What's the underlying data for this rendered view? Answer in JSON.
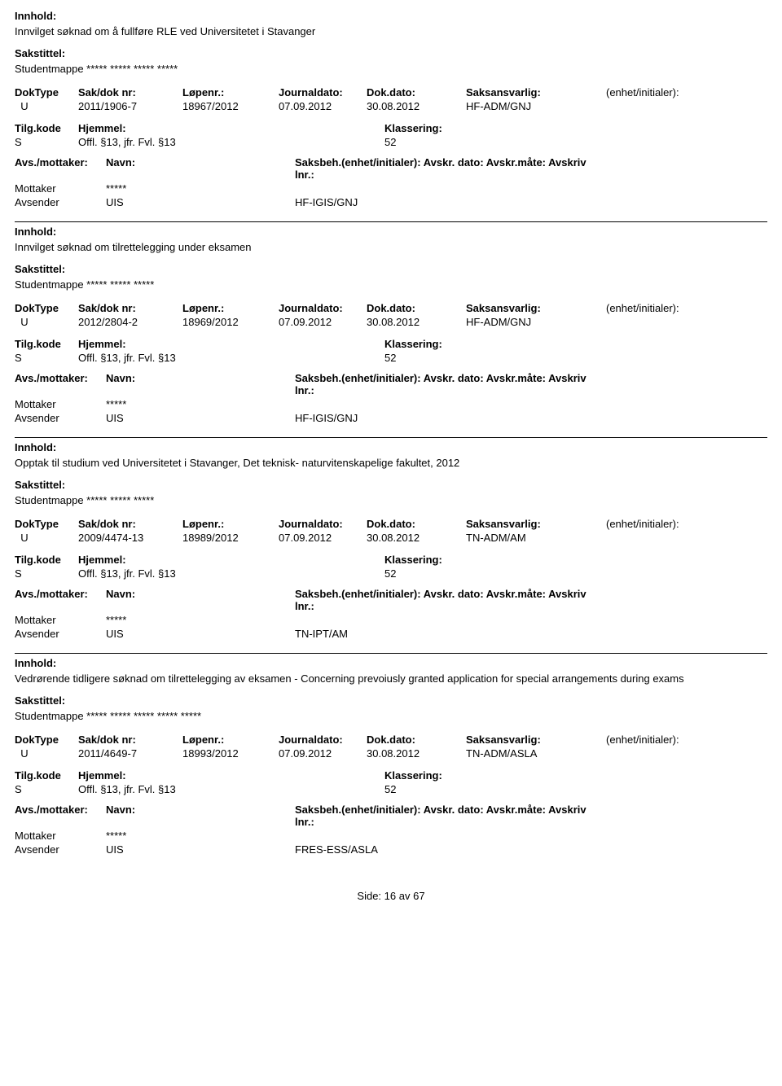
{
  "labels": {
    "innhold": "Innhold:",
    "sakstittel": "Sakstittel:",
    "doktype": "DokType",
    "sakdok": "Sak/dok nr:",
    "lopenr": "Løpenr.:",
    "journaldato": "Journaldato:",
    "dokdato": "Dok.dato:",
    "saksansvarlig": "Saksansvarlig:",
    "enhet": "(enhet/initialer):",
    "tilgkode": "Tilg.kode",
    "hjemmel": "Hjemmel:",
    "klassering": "Klassering:",
    "avsmottaker": "Avs./mottaker:",
    "navn": "Navn:",
    "saksbeh": "Saksbeh.(enhet/initialer): Avskr. dato: Avskr.måte: Avskriv lnr.:"
  },
  "footer": {
    "side": "Side:",
    "page": "16",
    "av": "av",
    "total": "67"
  },
  "records": [
    {
      "innhold": "Innvilget søknad om å fullføre RLE ved Universitetet i Stavanger",
      "sakstittel": "Studentmappe ***** ***** ***** *****",
      "doktype": "U",
      "sakdok": "2011/1906-7",
      "lopenr": "18967/2012",
      "jdato": "07.09.2012",
      "ddato": "30.08.2012",
      "saksansv": "HF-ADM/GNJ",
      "enhet": "",
      "tilg": "S",
      "hjemmel": "Offl. §13, jfr. Fvl. §13",
      "klass": "52",
      "parties": [
        {
          "role": "Mottaker",
          "name": "*****",
          "code": ""
        },
        {
          "role": "Avsender",
          "name": "UIS",
          "code": "HF-IGIS/GNJ"
        }
      ]
    },
    {
      "innhold": "Innvilget søknad om tilrettelegging under eksamen",
      "sakstittel": "Studentmappe ***** ***** *****",
      "doktype": "U",
      "sakdok": "2012/2804-2",
      "lopenr": "18969/2012",
      "jdato": "07.09.2012",
      "ddato": "30.08.2012",
      "saksansv": "HF-ADM/GNJ",
      "enhet": "",
      "tilg": "S",
      "hjemmel": "Offl. §13, jfr. Fvl. §13",
      "klass": "52",
      "parties": [
        {
          "role": "Mottaker",
          "name": "*****",
          "code": ""
        },
        {
          "role": "Avsender",
          "name": "UIS",
          "code": "HF-IGIS/GNJ"
        }
      ]
    },
    {
      "innhold": "Opptak til studium ved Universitetet i Stavanger, Det teknisk- naturvitenskapelige fakultet, 2012",
      "sakstittel": "Studentmappe ***** ***** *****",
      "doktype": "U",
      "sakdok": "2009/4474-13",
      "lopenr": "18989/2012",
      "jdato": "07.09.2012",
      "ddato": "30.08.2012",
      "saksansv": "TN-ADM/AM",
      "enhet": "",
      "tilg": "S",
      "hjemmel": "Offl. §13, jfr. Fvl. §13",
      "klass": "52",
      "parties": [
        {
          "role": "Mottaker",
          "name": "*****",
          "code": ""
        },
        {
          "role": "Avsender",
          "name": "UIS",
          "code": "TN-IPT/AM"
        }
      ]
    },
    {
      "innhold": "Vedrørende tidligere søknad om tilrettelegging av eksamen - Concerning prevoiusly granted application for special arrangements during exams",
      "sakstittel": "Studentmappe ***** ***** ***** ***** *****",
      "doktype": "U",
      "sakdok": "2011/4649-7",
      "lopenr": "18993/2012",
      "jdato": "07.09.2012",
      "ddato": "30.08.2012",
      "saksansv": "TN-ADM/ASLA",
      "enhet": "",
      "tilg": "S",
      "hjemmel": "Offl. §13, jfr. Fvl. §13",
      "klass": "52",
      "parties": [
        {
          "role": "Mottaker",
          "name": "*****",
          "code": ""
        },
        {
          "role": "Avsender",
          "name": "UIS",
          "code": "FRES-ESS/ASLA"
        }
      ]
    }
  ]
}
